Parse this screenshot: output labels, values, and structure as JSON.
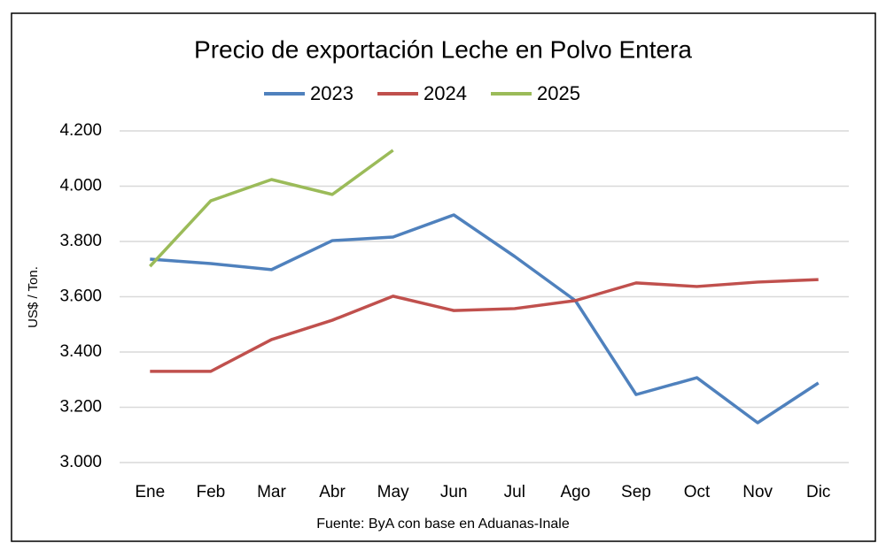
{
  "chart_data": {
    "type": "line",
    "title": "Precio de exportación Leche en Polvo Entera",
    "y_label": "US$ / Ton.",
    "source": "Fuente: ByA con base en Aduanas-Inale",
    "categories": [
      "Ene",
      "Feb",
      "Mar",
      "Abr",
      "May",
      "Jun",
      "Jul",
      "Ago",
      "Sep",
      "Oct",
      "Nov",
      "Dic"
    ],
    "series": [
      {
        "name": "2023",
        "color": "#4f81bd",
        "values": [
          3736,
          3720,
          3698,
          3803,
          3816,
          3896,
          3746,
          3586,
          3246,
          3307,
          3144,
          3288
        ]
      },
      {
        "name": "2024",
        "color": "#c0504d",
        "values": [
          3330,
          3330,
          3445,
          3515,
          3602,
          3550,
          3557,
          3586,
          3650,
          3637,
          3653,
          3662
        ]
      },
      {
        "name": "2025",
        "color": "#9bbb59",
        "values": [
          3710,
          3947,
          4024,
          3970,
          4130,
          null,
          null,
          null,
          null,
          null,
          null,
          null
        ]
      }
    ],
    "ylim": [
      3000,
      4200
    ],
    "yticks": [
      {
        "value": 3000,
        "label": "3.000"
      },
      {
        "value": 3200,
        "label": "3.200"
      },
      {
        "value": 3400,
        "label": "3.400"
      },
      {
        "value": 3600,
        "label": "3.600"
      },
      {
        "value": 3800,
        "label": "3.800"
      },
      {
        "value": 4000,
        "label": "4.000"
      },
      {
        "value": 4200,
        "label": "4.200"
      }
    ],
    "grid": true,
    "legend": "top"
  }
}
